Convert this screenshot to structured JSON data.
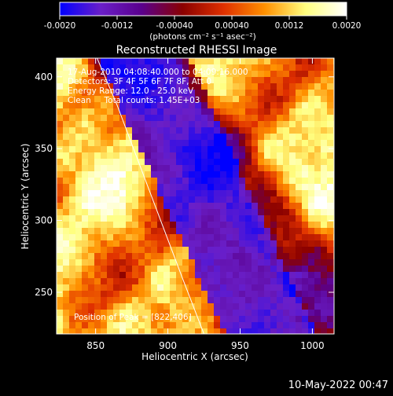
{
  "colorbar": {
    "ticks": [
      "-0.0020",
      "-0.0012",
      "-0.00040",
      "0.00040",
      "0.0012",
      "0.0020"
    ],
    "tick_values": [
      -0.002,
      -0.0012,
      -0.0004,
      0.0004,
      0.0012,
      0.002
    ],
    "range": [
      -0.002,
      0.002
    ],
    "unit_label": "(photons cm⁻² s⁻¹ asec⁻²)",
    "colors": [
      "#0000ff",
      "#6a1fc8",
      "#5a008c",
      "#8a0000",
      "#e03000",
      "#ff9000",
      "#ffff80",
      "#ffffff"
    ]
  },
  "chart_data": {
    "type": "heatmap",
    "title": "Reconstructed RHESSI Image",
    "xlabel": "Heliocentric X (arcsec)",
    "ylabel": "Heliocentric Y (arcsec)",
    "xlim": [
      823,
      1015
    ],
    "ylim": [
      221,
      413
    ],
    "x_ticks": [
      850,
      900,
      950,
      1000
    ],
    "y_ticks": [
      250,
      300,
      350,
      400
    ],
    "annotations": [
      "17-Aug-2010 04:08:40.000 to 04:09:16.000",
      "Detectors: 3F 4F 5F 6F 7F 8F, Att 0",
      "Energy Range: 12.0 - 25.0 keV",
      "Clean     Total counts: 1.45E+03"
    ],
    "peak_label": "Position of Peak = [822,406]",
    "limb_curve": {
      "x": [
        851,
        865,
        880,
        895,
        910,
        925
      ],
      "y": [
        413,
        380,
        340,
        300,
        260,
        221
      ]
    },
    "colormap": [
      "#0000ff",
      "#6a1fc8",
      "#5a008c",
      "#8a0000",
      "#e03000",
      "#ff9000",
      "#ffff80",
      "#ffffff"
    ]
  },
  "footer": {
    "timestamp": "10-May-2022 00:47"
  }
}
